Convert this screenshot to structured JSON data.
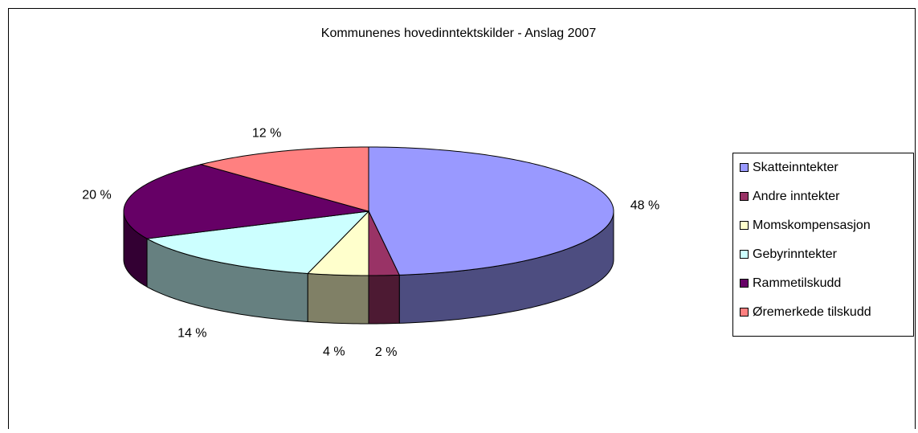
{
  "chart_data": {
    "type": "pie3d",
    "title": "Kommunenes hovedinntektskilder - Anslag 2007",
    "categories": [
      "Skatteinntekter",
      "Andre inntekter",
      "Momskompensasjon",
      "Gebyrinntekter",
      "Rammetilskudd",
      "Øremerkede tilskudd"
    ],
    "values": [
      48,
      2,
      4,
      14,
      20,
      12
    ],
    "value_labels": [
      "48 %",
      "2 %",
      "4 %",
      "14 %",
      "20 %",
      "12 %"
    ],
    "colors": [
      "#9999ff",
      "#993366",
      "#ffffcc",
      "#ccffff",
      "#660066",
      "#ff8080"
    ],
    "legend": "right"
  }
}
